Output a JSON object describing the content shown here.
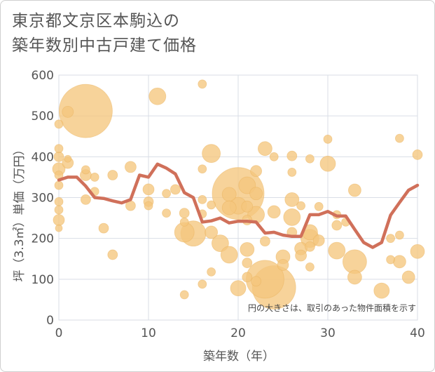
{
  "title_line1": "東京都文京区本駒込の",
  "title_line2": "築年数別中古戸建て価格",
  "chart_data": {
    "type": "scatter",
    "xlabel": "築年数（年）",
    "ylabel": "坪（3.3㎡）単価（万円）",
    "xlim": [
      0,
      40
    ],
    "ylim": [
      0,
      600
    ],
    "x_ticks": [
      0,
      10,
      20,
      30,
      40
    ],
    "y_ticks": [
      0,
      100,
      200,
      300,
      400,
      500,
      600
    ],
    "grid": true,
    "annotation": "円の大きさは、取引のあった物件面積を示す",
    "colors": {
      "bubble": "#f5c77e",
      "line": "#d0705a",
      "grid": "#d9dee6",
      "text": "#555555"
    },
    "bubbles": [
      {
        "x": 0,
        "y": 480,
        "size": 6
      },
      {
        "x": 0,
        "y": 420,
        "size": 6
      },
      {
        "x": 0,
        "y": 400,
        "size": 7
      },
      {
        "x": 0,
        "y": 370,
        "size": 9
      },
      {
        "x": 0,
        "y": 355,
        "size": 6
      },
      {
        "x": 0,
        "y": 330,
        "size": 6
      },
      {
        "x": 0,
        "y": 290,
        "size": 6
      },
      {
        "x": 0,
        "y": 270,
        "size": 6
      },
      {
        "x": 0,
        "y": 245,
        "size": 8
      },
      {
        "x": 0,
        "y": 225,
        "size": 5
      },
      {
        "x": 1,
        "y": 510,
        "size": 8
      },
      {
        "x": 1,
        "y": 385,
        "size": 8
      },
      {
        "x": 1,
        "y": 395,
        "size": 5
      },
      {
        "x": 3,
        "y": 512,
        "size": 38
      },
      {
        "x": 3,
        "y": 368,
        "size": 6
      },
      {
        "x": 3,
        "y": 355,
        "size": 8
      },
      {
        "x": 3,
        "y": 295,
        "size": 7
      },
      {
        "x": 4,
        "y": 350,
        "size": 6
      },
      {
        "x": 4,
        "y": 315,
        "size": 6
      },
      {
        "x": 5,
        "y": 225,
        "size": 7
      },
      {
        "x": 6,
        "y": 355,
        "size": 7
      },
      {
        "x": 6,
        "y": 160,
        "size": 7
      },
      {
        "x": 8,
        "y": 375,
        "size": 8
      },
      {
        "x": 8,
        "y": 280,
        "size": 7
      },
      {
        "x": 10,
        "y": 320,
        "size": 8
      },
      {
        "x": 10,
        "y": 290,
        "size": 7
      },
      {
        "x": 10,
        "y": 280,
        "size": 6
      },
      {
        "x": 11,
        "y": 548,
        "size": 12
      },
      {
        "x": 12,
        "y": 310,
        "size": 6
      },
      {
        "x": 12,
        "y": 262,
        "size": 6
      },
      {
        "x": 13,
        "y": 320,
        "size": 7
      },
      {
        "x": 14,
        "y": 262,
        "size": 7
      },
      {
        "x": 14,
        "y": 240,
        "size": 6
      },
      {
        "x": 14,
        "y": 215,
        "size": 14
      },
      {
        "x": 14,
        "y": 62,
        "size": 6
      },
      {
        "x": 15,
        "y": 212,
        "size": 18
      },
      {
        "x": 16,
        "y": 578,
        "size": 6
      },
      {
        "x": 16,
        "y": 370,
        "size": 6
      },
      {
        "x": 16,
        "y": 295,
        "size": 6
      },
      {
        "x": 16,
        "y": 260,
        "size": 6
      },
      {
        "x": 16,
        "y": 88,
        "size": 6
      },
      {
        "x": 17,
        "y": 408,
        "size": 13
      },
      {
        "x": 17,
        "y": 282,
        "size": 6
      },
      {
        "x": 17,
        "y": 215,
        "size": 9
      },
      {
        "x": 17,
        "y": 118,
        "size": 6
      },
      {
        "x": 18,
        "y": 188,
        "size": 12
      },
      {
        "x": 19,
        "y": 308,
        "size": 10
      },
      {
        "x": 19,
        "y": 275,
        "size": 10
      },
      {
        "x": 19,
        "y": 160,
        "size": 12
      },
      {
        "x": 20,
        "y": 310,
        "size": 37
      },
      {
        "x": 20,
        "y": 280,
        "size": 12
      },
      {
        "x": 20,
        "y": 78,
        "size": 11
      },
      {
        "x": 21,
        "y": 330,
        "size": 12
      },
      {
        "x": 21,
        "y": 278,
        "size": 8
      },
      {
        "x": 21,
        "y": 245,
        "size": 7
      },
      {
        "x": 21,
        "y": 173,
        "size": 10
      },
      {
        "x": 21,
        "y": 140,
        "size": 7
      },
      {
        "x": 21,
        "y": 105,
        "size": 7
      },
      {
        "x": 22,
        "y": 365,
        "size": 8
      },
      {
        "x": 22,
        "y": 310,
        "size": 9
      },
      {
        "x": 22,
        "y": 258,
        "size": 12
      },
      {
        "x": 22,
        "y": 95,
        "size": 7
      },
      {
        "x": 23,
        "y": 420,
        "size": 10
      },
      {
        "x": 23,
        "y": 193,
        "size": 7
      },
      {
        "x": 23,
        "y": 100,
        "size": 27
      },
      {
        "x": 24,
        "y": 400,
        "size": 6
      },
      {
        "x": 24,
        "y": 265,
        "size": 9
      },
      {
        "x": 24,
        "y": 80,
        "size": 31
      },
      {
        "x": 25,
        "y": 155,
        "size": 10
      },
      {
        "x": 25,
        "y": 135,
        "size": 8
      },
      {
        "x": 26,
        "y": 402,
        "size": 7
      },
      {
        "x": 26,
        "y": 362,
        "size": 6
      },
      {
        "x": 26,
        "y": 295,
        "size": 10
      },
      {
        "x": 26,
        "y": 252,
        "size": 12
      },
      {
        "x": 26,
        "y": 215,
        "size": 7
      },
      {
        "x": 27,
        "y": 280,
        "size": 6
      },
      {
        "x": 27,
        "y": 175,
        "size": 9
      },
      {
        "x": 27,
        "y": 158,
        "size": 8
      },
      {
        "x": 28,
        "y": 395,
        "size": 6
      },
      {
        "x": 28,
        "y": 215,
        "size": 11
      },
      {
        "x": 28,
        "y": 200,
        "size": 13
      },
      {
        "x": 28,
        "y": 180,
        "size": 7
      },
      {
        "x": 28,
        "y": 130,
        "size": 6
      },
      {
        "x": 29,
        "y": 278,
        "size": 6
      },
      {
        "x": 29,
        "y": 195,
        "size": 8
      },
      {
        "x": 30,
        "y": 443,
        "size": 6
      },
      {
        "x": 30,
        "y": 383,
        "size": 11
      },
      {
        "x": 31,
        "y": 258,
        "size": 6
      },
      {
        "x": 31,
        "y": 232,
        "size": 7
      },
      {
        "x": 31,
        "y": 170,
        "size": 12
      },
      {
        "x": 32,
        "y": 240,
        "size": 6
      },
      {
        "x": 33,
        "y": 318,
        "size": 9
      },
      {
        "x": 33,
        "y": 143,
        "size": 17
      },
      {
        "x": 33,
        "y": 105,
        "size": 10
      },
      {
        "x": 36,
        "y": 72,
        "size": 11
      },
      {
        "x": 37,
        "y": 200,
        "size": 6
      },
      {
        "x": 37,
        "y": 148,
        "size": 6
      },
      {
        "x": 38,
        "y": 445,
        "size": 6
      },
      {
        "x": 38,
        "y": 208,
        "size": 6
      },
      {
        "x": 38,
        "y": 143,
        "size": 9
      },
      {
        "x": 39,
        "y": 105,
        "size": 9
      },
      {
        "x": 40,
        "y": 405,
        "size": 7
      },
      {
        "x": 40,
        "y": 168,
        "size": 10
      }
    ],
    "trend_line": {
      "x": [
        0,
        1,
        2,
        3,
        4,
        5,
        6,
        7,
        8,
        9,
        10,
        11,
        12,
        13,
        14,
        15,
        16,
        17,
        18,
        19,
        20,
        21,
        22,
        23,
        24,
        25,
        26,
        27,
        28,
        29,
        30,
        31,
        32,
        33,
        34,
        35,
        36,
        37,
        38,
        39,
        40
      ],
      "y": [
        343,
        350,
        350,
        328,
        300,
        298,
        292,
        287,
        295,
        355,
        350,
        382,
        372,
        358,
        312,
        300,
        240,
        243,
        250,
        238,
        242,
        242,
        240,
        213,
        215,
        208,
        205,
        205,
        258,
        258,
        266,
        255,
        255,
        222,
        190,
        178,
        190,
        257,
        288,
        318,
        330
      ]
    }
  }
}
